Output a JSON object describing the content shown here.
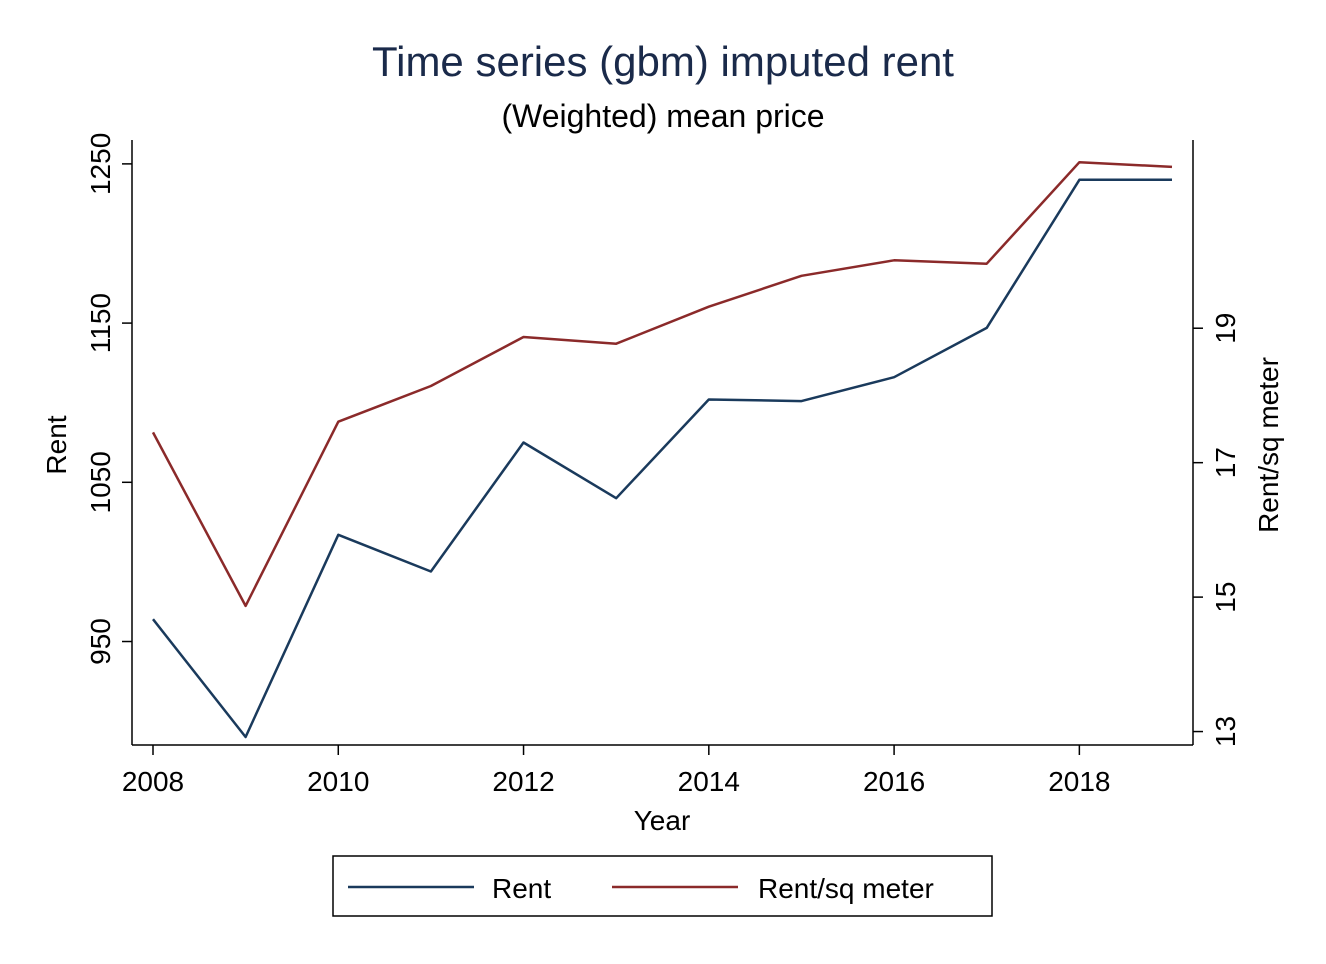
{
  "chart_data": {
    "type": "line",
    "title": "Time series (gbm) imputed rent",
    "subtitle": "(Weighted) mean price",
    "xlabel": "Year",
    "ylabel": "Rent",
    "y2label": "Rent/sq meter",
    "x": [
      2008,
      2009,
      2010,
      2011,
      2012,
      2013,
      2014,
      2015,
      2016,
      2017,
      2018,
      2019
    ],
    "xticks": [
      2008,
      2010,
      2012,
      2014,
      2016,
      2018
    ],
    "xlim": [
      2008,
      2019
    ],
    "ylim": [
      885,
      1265
    ],
    "yticks": [
      950,
      1050,
      1150,
      1250
    ],
    "y2lim": [
      12.8,
      21.8
    ],
    "y2ticks": [
      13,
      15,
      17,
      19
    ],
    "series": [
      {
        "name": "Rent",
        "axis": "left",
        "color": "#1a3a5c",
        "values": [
          964,
          890,
          1017,
          994,
          1075,
          1040,
          1102,
          1101,
          1116,
          1147,
          1240,
          1240
        ]
      },
      {
        "name": "Rent/sq meter",
        "axis": "right",
        "color": "#8b2a2a",
        "values": [
          17.45,
          14.87,
          17.61,
          18.14,
          18.87,
          18.77,
          19.32,
          19.78,
          20.01,
          19.96,
          21.47,
          21.4
        ]
      }
    ],
    "legend": {
      "position": "bottom",
      "entries": [
        "Rent",
        "Rent/sq meter"
      ]
    },
    "grid": false
  }
}
